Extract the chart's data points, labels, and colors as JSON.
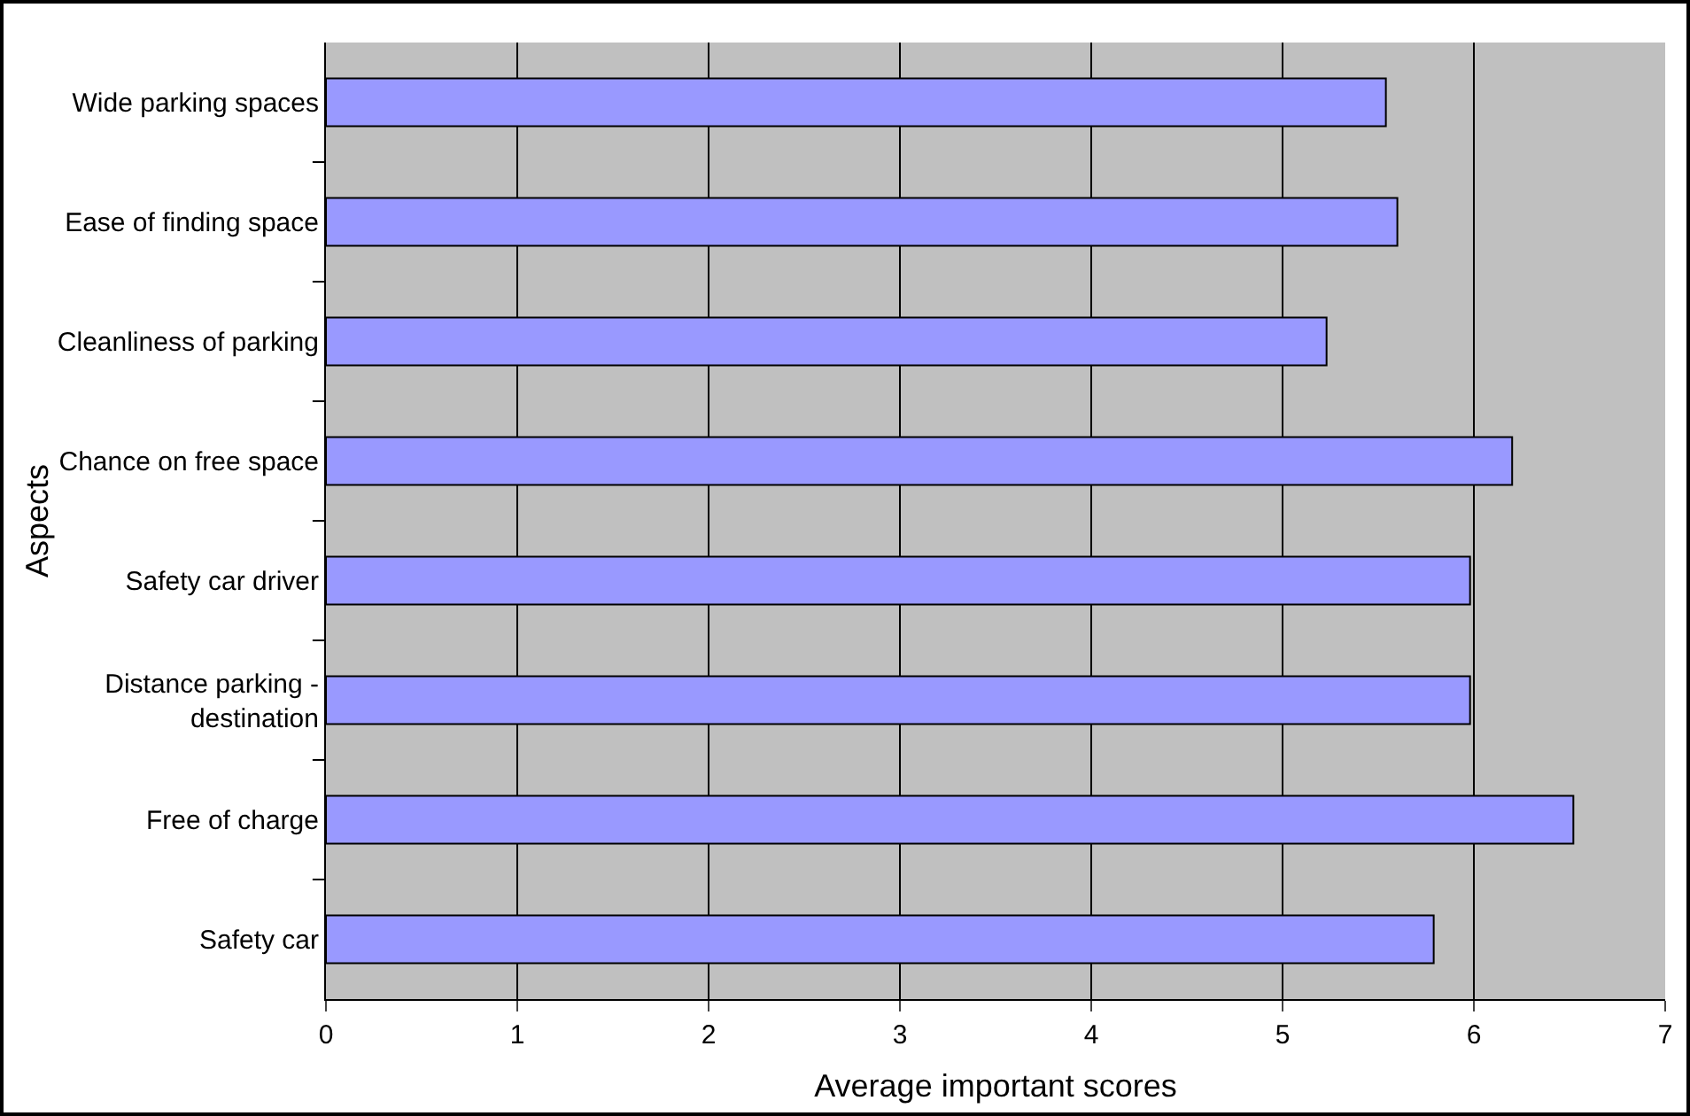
{
  "chart_data": {
    "type": "bar",
    "orientation": "horizontal",
    "categories": [
      "Wide parking spaces",
      "Ease of finding space",
      "Cleanliness of parking",
      "Chance on free space",
      "Safety car driver",
      "Distance parking - destination",
      "Free of charge",
      "Safety car"
    ],
    "values": [
      5.54,
      5.6,
      5.23,
      6.2,
      5.98,
      5.98,
      6.52,
      5.79
    ],
    "color": "#9999ff",
    "xlabel": "Average important scores",
    "ylabel": "Aspects",
    "xlim": [
      0,
      7
    ],
    "xticks": [
      0,
      1,
      2,
      3,
      4,
      5,
      6,
      7
    ],
    "grid": "x"
  }
}
